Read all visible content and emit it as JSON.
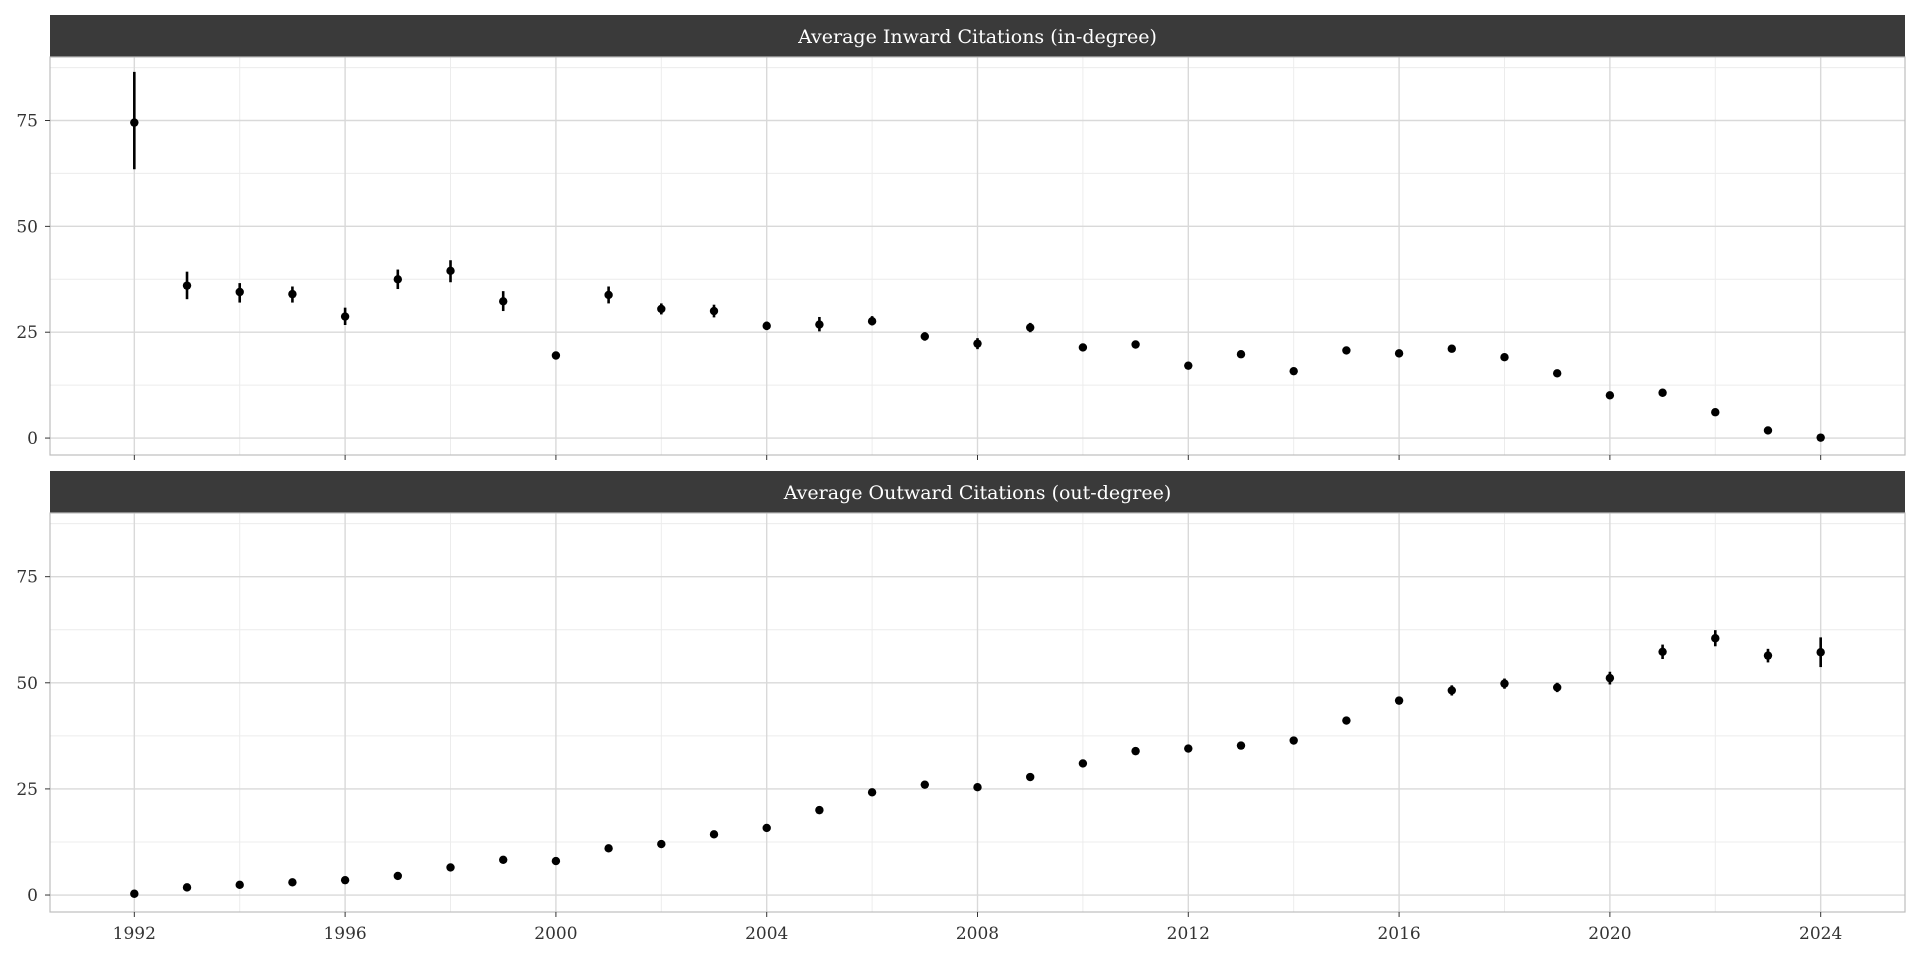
{
  "chart_data": [
    {
      "type": "scatter",
      "panel_title": "Average Inward Citations (in-degree)",
      "x": [
        1992,
        1993,
        1994,
        1995,
        1996,
        1997,
        1998,
        1999,
        2000,
        2001,
        2002,
        2003,
        2004,
        2005,
        2006,
        2007,
        2008,
        2009,
        2010,
        2011,
        2012,
        2013,
        2014,
        2015,
        2016,
        2017,
        2018,
        2019,
        2020,
        2021,
        2022,
        2023,
        2024
      ],
      "y": [
        74.5,
        36,
        34.5,
        34,
        28.7,
        37.5,
        39.5,
        32.3,
        19.5,
        33.8,
        30.5,
        30,
        26.5,
        26.8,
        27.6,
        24,
        22.3,
        26.1,
        21.4,
        22.1,
        17.1,
        19.8,
        15.8,
        20.7,
        20,
        21.1,
        19.1,
        15.3,
        10.1,
        10.7,
        6.1,
        1.8,
        0.1
      ],
      "y_lower": [
        63.5,
        32.8,
        32,
        32,
        26.7,
        35.2,
        36.8,
        30,
        19,
        31.8,
        29.2,
        28.5,
        25.5,
        25.2,
        26.6,
        23,
        21,
        25,
        20.8,
        21.5,
        16.6,
        19.3,
        15.3,
        20.1,
        19.5,
        20.6,
        18.6,
        14.8,
        9.7,
        10.2,
        5.7,
        1.4,
        0
      ],
      "y_upper": [
        86.5,
        39.3,
        36.6,
        35.8,
        30.8,
        39.8,
        42,
        34.7,
        20,
        35.8,
        31.8,
        31.5,
        27.5,
        28.6,
        28.8,
        25,
        23.6,
        27.2,
        22,
        22.7,
        17.6,
        20.3,
        16.3,
        21.3,
        20.5,
        21.6,
        19.6,
        15.8,
        10.5,
        11.2,
        6.5,
        2.2,
        0.3
      ],
      "ylim": [
        -4,
        90
      ],
      "y_ticks": [
        0,
        25,
        50,
        75
      ],
      "grid": true
    },
    {
      "type": "scatter",
      "panel_title": "Average Outward Citations (out-degree)",
      "x": [
        1992,
        1993,
        1994,
        1995,
        1996,
        1997,
        1998,
        1999,
        2000,
        2001,
        2002,
        2003,
        2004,
        2005,
        2006,
        2007,
        2008,
        2009,
        2010,
        2011,
        2012,
        2013,
        2014,
        2015,
        2016,
        2017,
        2018,
        2019,
        2020,
        2021,
        2022,
        2023,
        2024
      ],
      "y": [
        0.3,
        1.8,
        2.4,
        3,
        3.5,
        4.5,
        6.5,
        8.3,
        8,
        11,
        12,
        14.3,
        15.8,
        20,
        24.2,
        26,
        25.4,
        27.8,
        31,
        33.9,
        34.5,
        35.2,
        36.4,
        41.1,
        45.8,
        48.2,
        49.8,
        48.9,
        51.1,
        57.3,
        60.5,
        56.4,
        57.2
      ],
      "y_lower": [
        0,
        1.4,
        2,
        2.6,
        3,
        4,
        6,
        7.8,
        7.5,
        10.5,
        11.5,
        13.8,
        15.2,
        19.4,
        23.6,
        25.4,
        24.8,
        27.2,
        30.4,
        33.2,
        33.8,
        34.5,
        35.6,
        40.2,
        44.9,
        47,
        48.6,
        47.8,
        49.6,
        55.6,
        58.6,
        54.8,
        53.7
      ],
      "y_upper": [
        0.7,
        2.2,
        2.8,
        3.4,
        4,
        5,
        7,
        8.8,
        8.5,
        11.5,
        12.5,
        14.8,
        16.4,
        20.6,
        24.8,
        26.6,
        26,
        28.4,
        31.6,
        34.6,
        35.2,
        35.9,
        37.2,
        42,
        46.7,
        49.4,
        51,
        50,
        52.6,
        59,
        62.4,
        58,
        60.7
      ],
      "ylim": [
        -4,
        90
      ],
      "y_ticks": [
        0,
        25,
        50,
        75
      ],
      "grid": true
    }
  ],
  "x_axis": {
    "xlim": [
      1990.4,
      2025.6
    ],
    "ticks": [
      1992,
      1996,
      2000,
      2004,
      2008,
      2012,
      2016,
      2020,
      2024
    ],
    "tick_labels": [
      "1992",
      "1996",
      "2000",
      "2004",
      "2008",
      "2012",
      "2016",
      "2020",
      "2024"
    ]
  },
  "colors": {
    "strip_background": "#3a3a3a",
    "strip_text": "#ffffff",
    "panel_border": "#bdbdbd",
    "grid_major": "#d9d9d9",
    "grid_minor": "#ececec",
    "point": "#000000"
  }
}
